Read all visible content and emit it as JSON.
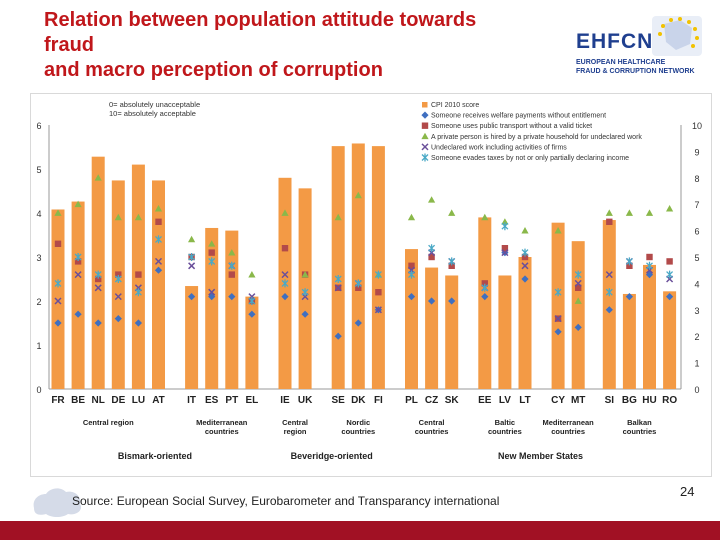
{
  "slide": {
    "title_line1": "Relation between population attitude towards",
    "title_line2": "fraud",
    "title_line3": "and macro perception of corruption",
    "logo_text": "EHFCN",
    "logo_sub1": "European Healthcare",
    "logo_sub2": "Fraud & Corruption Network",
    "source": "Source: European Social Survey, Eurobarometer and Transparancy international",
    "page_number": "24"
  },
  "colors": {
    "title": "#c0171b",
    "footer": "#a11124",
    "bar": "#f39a45"
  },
  "chart_data": {
    "type": "bar",
    "note_line1": "0= absolutely unacceptable",
    "note_line2": "10= absolutely acceptable",
    "categories": [
      "FR",
      "BE",
      "NL",
      "DE",
      "LU",
      "AT",
      "IT",
      "ES",
      "PT",
      "EL",
      "IE",
      "UK",
      "SE",
      "DK",
      "FI",
      "PL",
      "CZ",
      "SK",
      "EE",
      "LV",
      "LT",
      "CY",
      "MT",
      "SI",
      "BG",
      "HU",
      "RO"
    ],
    "y_left": {
      "min": 0,
      "max": 6,
      "ticks": [
        "0",
        "1",
        "2",
        "3",
        "4",
        "5",
        "6"
      ]
    },
    "y_right": {
      "min": 0,
      "max": 10,
      "ticks": [
        "0",
        "1",
        "2",
        "3",
        "4",
        "5",
        "6",
        "7",
        "8",
        "9",
        "10"
      ]
    },
    "bar_series": {
      "name": "CPI 2010 score",
      "axis": "right",
      "values": [
        6.8,
        7.1,
        8.8,
        7.9,
        8.5,
        7.9,
        3.9,
        6.1,
        6.0,
        3.5,
        8.0,
        7.6,
        9.2,
        9.3,
        9.2,
        5.3,
        4.6,
        4.3,
        6.5,
        4.3,
        5.0,
        6.3,
        5.6,
        6.4,
        3.6,
        4.7,
        3.7
      ]
    },
    "marker_series": [
      {
        "name": "Someone receives welfare payments without entitlement",
        "marker": "diamond",
        "color": "#3f6fc0",
        "values": [
          1.5,
          1.7,
          1.5,
          1.6,
          1.5,
          2.7,
          2.1,
          2.1,
          2.1,
          1.7,
          2.1,
          1.7,
          1.2,
          1.5,
          1.8,
          2.1,
          2.0,
          2.0,
          2.1,
          3.1,
          2.5,
          1.3,
          1.4,
          1.8,
          2.1,
          2.6,
          2.1
        ]
      },
      {
        "name": "Someone uses public transport without a valid ticket",
        "marker": "square",
        "color": "#b24a4a",
        "values": [
          3.3,
          2.9,
          2.5,
          2.6,
          2.6,
          3.8,
          3.0,
          3.1,
          2.6,
          2.0,
          3.2,
          2.6,
          2.3,
          2.3,
          2.2,
          2.8,
          3.0,
          2.8,
          2.4,
          3.2,
          3.0,
          1.6,
          2.3,
          3.8,
          2.8,
          3.0,
          2.9
        ]
      },
      {
        "name": "A private person is hired by a private household for undeclared work",
        "marker": "triangle",
        "color": "#8ab84a",
        "values": [
          4.0,
          4.2,
          4.8,
          3.9,
          3.9,
          4.1,
          3.4,
          3.3,
          3.1,
          2.6,
          4.0,
          2.6,
          3.9,
          4.4,
          2.6,
          3.9,
          4.3,
          4.0,
          3.9,
          3.8,
          3.6,
          3.6,
          2.0,
          4.0,
          4.0,
          4.0,
          4.1
        ]
      },
      {
        "name": "Undeclared work including activities of firms",
        "marker": "x",
        "color": "#6a4f9a",
        "values": [
          2.0,
          2.6,
          2.3,
          2.1,
          2.3,
          2.9,
          2.8,
          2.2,
          2.8,
          2.1,
          2.6,
          2.1,
          2.3,
          2.4,
          1.8,
          2.7,
          3.1,
          2.9,
          2.3,
          3.1,
          2.8,
          1.6,
          2.4,
          2.6,
          2.9,
          2.7,
          2.5
        ]
      },
      {
        "name": "Someone evades taxes by not or only partially declaring income",
        "marker": "asterisk",
        "color": "#4aa9c6",
        "values": [
          2.4,
          3.0,
          2.6,
          2.5,
          2.2,
          3.4,
          3.0,
          2.9,
          2.8,
          2.0,
          2.4,
          2.2,
          2.5,
          2.4,
          2.6,
          2.6,
          3.2,
          2.9,
          2.3,
          3.7,
          3.1,
          2.2,
          2.6,
          2.2,
          2.9,
          2.8,
          2.6
        ]
      }
    ],
    "region_labels": [
      {
        "line1": "Central region",
        "line2": "",
        "from": 0,
        "to": 5
      },
      {
        "line1": "Mediterranean",
        "line2": "countries",
        "from": 6,
        "to": 9
      },
      {
        "line1": "Central",
        "line2": "region",
        "from": 10,
        "to": 11
      },
      {
        "line1": "Nordic",
        "line2": "countries",
        "from": 12,
        "to": 14
      },
      {
        "line1": "Central",
        "line2": "countries",
        "from": 15,
        "to": 17
      },
      {
        "line1": "Baltic",
        "line2": "countries",
        "from": 18,
        "to": 20
      },
      {
        "line1": "Mediterranean",
        "line2": "countries",
        "from": 21,
        "to": 22
      },
      {
        "line1": "Balkan",
        "line2": "countries",
        "from": 23,
        "to": 26
      }
    ],
    "group_labels": [
      {
        "label": "Bismark-oriented",
        "from": 0,
        "to": 9
      },
      {
        "label": "Beveridge-oriented",
        "from": 10,
        "to": 14
      },
      {
        "label": "New Member States",
        "from": 15,
        "to": 26
      }
    ]
  }
}
